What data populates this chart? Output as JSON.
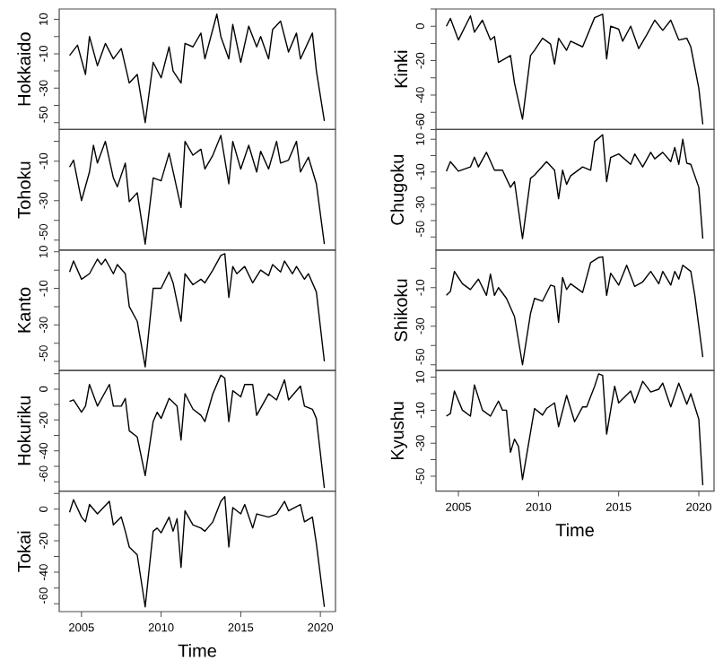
{
  "chart_data": [
    {
      "type": "line",
      "ylabel": "Hokkaido",
      "color": "#000000",
      "tick_labels": "y",
      "xlim": [
        2003.6,
        2020.95
      ],
      "ylim": [
        -54,
        16
      ],
      "yticks": [
        {
          "value": -50,
          "label": "-50"
        },
        {
          "value": -40,
          "label": null
        },
        {
          "value": -30,
          "label": "-30"
        },
        {
          "value": -20,
          "label": null
        },
        {
          "value": -10,
          "label": "-10"
        },
        {
          "value": 0,
          "label": null
        },
        {
          "value": 10,
          "label": "10"
        }
      ],
      "x": [
        2004.25,
        2004.75,
        2005.25,
        2005.5,
        2006,
        2006.5,
        2007,
        2007.5,
        2008,
        2008.5,
        2009,
        2009.5,
        2010,
        2010.5,
        2010.75,
        2011.25,
        2011.5,
        2012,
        2012.5,
        2012.75,
        2013.5,
        2013.75,
        2014.25,
        2014.5,
        2015,
        2015.5,
        2016,
        2016.25,
        2016.75,
        2017,
        2017.5,
        2018,
        2018.5,
        2018.75,
        2019.5,
        2019.75,
        2020.25
      ],
      "values": [
        -11,
        -5,
        -22,
        0,
        -17,
        -4,
        -13,
        -7,
        -27,
        -22,
        -50,
        -15,
        -24,
        -6,
        -20,
        -27,
        -4,
        -6,
        2,
        -13,
        13,
        0,
        -13,
        7,
        -15,
        6,
        -6,
        0,
        -13,
        4,
        9,
        -9,
        2,
        -13,
        2,
        -20,
        -49
      ]
    },
    {
      "type": "line",
      "ylabel": "Tohoku",
      "color": "#000000",
      "tick_labels": "y",
      "xlim": [
        2003.6,
        2020.95
      ],
      "ylim": [
        -55,
        6
      ],
      "yticks": [
        {
          "value": -50,
          "label": "-50"
        },
        {
          "value": -40,
          "label": null
        },
        {
          "value": -30,
          "label": "-30"
        },
        {
          "value": -20,
          "label": null
        },
        {
          "value": -10,
          "label": "-10"
        },
        {
          "value": 0,
          "label": null
        }
      ],
      "x": [
        2004.25,
        2004.5,
        2005,
        2005.5,
        2005.75,
        2006,
        2006.5,
        2007,
        2007.25,
        2007.75,
        2008,
        2008.5,
        2009,
        2009.5,
        2010,
        2010.5,
        2011.25,
        2011.5,
        2012,
        2012.5,
        2012.75,
        2013.25,
        2013.75,
        2014.25,
        2014.5,
        2015,
        2015.5,
        2016,
        2016.25,
        2016.75,
        2017.25,
        2017.5,
        2018,
        2018.5,
        2018.75,
        2019.25,
        2019.75,
        2020.25
      ],
      "values": [
        -13,
        -9.5,
        -30,
        -15.5,
        -2,
        -11,
        0,
        -18.5,
        -23,
        -11,
        -30.5,
        -26,
        -52,
        -18.5,
        -20,
        -6,
        -33.5,
        0,
        -7,
        -4,
        -14,
        -7,
        3,
        -21.5,
        0,
        -14,
        -2,
        -15.5,
        -5,
        -14,
        0,
        -11,
        -9.5,
        0,
        -15.5,
        -8,
        -21.5,
        -52
      ]
    },
    {
      "type": "line",
      "ylabel": "Kanto",
      "color": "#000000",
      "tick_labels": "y",
      "xlim": [
        2003.6,
        2020.95
      ],
      "ylim": [
        -55,
        11
      ],
      "yticks": [
        {
          "value": -50,
          "label": "-50"
        },
        {
          "value": -40,
          "label": null
        },
        {
          "value": -30,
          "label": "-30"
        },
        {
          "value": -20,
          "label": null
        },
        {
          "value": -10,
          "label": "-10"
        },
        {
          "value": 0,
          "label": null
        },
        {
          "value": 10,
          "label": "10"
        }
      ],
      "x": [
        2004.25,
        2004.5,
        2005,
        2005.5,
        2006,
        2006.25,
        2006.5,
        2007,
        2007.25,
        2007.75,
        2008,
        2008.5,
        2009,
        2009.5,
        2010,
        2010.5,
        2010.75,
        2011.25,
        2011.5,
        2012,
        2012.5,
        2012.75,
        2013.25,
        2013.75,
        2014,
        2014.25,
        2014.5,
        2014.75,
        2015.25,
        2015.75,
        2016.25,
        2016.75,
        2017,
        2017.5,
        2017.75,
        2018.25,
        2018.5,
        2019,
        2019.25,
        2019.75,
        2020.25
      ],
      "values": [
        -1,
        5,
        -5,
        -2,
        6,
        3,
        6,
        -2,
        3,
        -2,
        -20,
        -28,
        -53,
        -10,
        -10,
        -1,
        -7,
        -28,
        -2,
        -8,
        -5,
        -7,
        0,
        8,
        9,
        -15,
        2,
        -2,
        2,
        -7,
        0,
        -3,
        3,
        -1,
        5,
        -2,
        2,
        -5,
        -2,
        -12,
        -50
      ]
    },
    {
      "type": "line",
      "ylabel": "Hokuriku",
      "color": "#000000",
      "tick_labels": "y",
      "xlim": [
        2003.6,
        2020.95
      ],
      "ylim": [
        -66,
        12
      ],
      "yticks": [
        {
          "value": -60,
          "label": "-60"
        },
        {
          "value": -50,
          "label": null
        },
        {
          "value": -40,
          "label": "-40"
        },
        {
          "value": -30,
          "label": null
        },
        {
          "value": -20,
          "label": "-20"
        },
        {
          "value": -10,
          "label": null
        },
        {
          "value": 0,
          "label": "0"
        },
        {
          "value": 10,
          "label": null
        }
      ],
      "x": [
        2004.25,
        2004.5,
        2005,
        2005.25,
        2005.5,
        2006,
        2006.75,
        2007,
        2007.5,
        2007.75,
        2008,
        2008.5,
        2009,
        2009.5,
        2009.75,
        2010,
        2010.5,
        2011,
        2011.25,
        2011.5,
        2012,
        2012.5,
        2012.75,
        2013.25,
        2013.75,
        2014,
        2014.25,
        2014.5,
        2015,
        2015.25,
        2015.75,
        2016,
        2016.75,
        2017.25,
        2017.75,
        2018,
        2018.75,
        2019,
        2019.5,
        2019.75,
        2020.25
      ],
      "values": [
        -8,
        -7,
        -15,
        -11,
        3,
        -11,
        3,
        -11,
        -11,
        -6,
        -27,
        -31,
        -56,
        -21,
        -15,
        -19,
        -6,
        -11,
        -33,
        -3,
        -13,
        -17,
        -21,
        -3,
        9,
        7,
        -21,
        -1,
        -5,
        3,
        3,
        -17,
        -3,
        -7,
        6,
        -7,
        2,
        -11,
        -13,
        -19,
        -64
      ]
    },
    {
      "type": "line",
      "ylabel": "Tokai",
      "xlabel": "Time",
      "color": "#000000",
      "xlim": [
        2003.6,
        2020.95
      ],
      "xticks": [
        2005,
        2010,
        2015,
        2020
      ],
      "ylim": [
        -65,
        11.5
      ],
      "yticks": [
        {
          "value": -60,
          "label": "-60"
        },
        {
          "value": -50,
          "label": null
        },
        {
          "value": -40,
          "label": "-40"
        },
        {
          "value": -30,
          "label": null
        },
        {
          "value": -20,
          "label": "-20"
        },
        {
          "value": -10,
          "label": null
        },
        {
          "value": 0,
          "label": "0"
        },
        {
          "value": 10,
          "label": null
        }
      ],
      "x": [
        2004.25,
        2004.5,
        2005,
        2005.25,
        2005.5,
        2006,
        2006.75,
        2007,
        2007.5,
        2007.75,
        2008,
        2008.5,
        2009,
        2009.5,
        2009.75,
        2010,
        2010.5,
        2010.75,
        2011,
        2011.25,
        2011.5,
        2012,
        2012.5,
        2012.75,
        2013.25,
        2013.75,
        2014,
        2014.25,
        2014.5,
        2015,
        2015.25,
        2015.75,
        2016,
        2016.75,
        2017.25,
        2017.75,
        2018,
        2018.75,
        2019,
        2019.5,
        2019.75,
        2020.25
      ],
      "values": [
        -2,
        6,
        -5,
        -8,
        3,
        -3,
        5,
        -10,
        -5,
        -14,
        -24,
        -29,
        -62,
        -14,
        -12,
        -15,
        -5,
        -14,
        -6,
        -37,
        -1,
        -10,
        -12,
        -14,
        -8,
        5,
        8,
        -24,
        1,
        -3,
        3,
        -12,
        -3,
        -5,
        -3,
        5,
        -1,
        3,
        -8,
        -5,
        -22,
        -62
      ]
    },
    {
      "type": "line",
      "ylabel": "Kinki",
      "color": "#000000",
      "tick_labels": "y",
      "xlim": [
        2003.6,
        2020.95
      ],
      "ylim": [
        -60,
        10
      ],
      "yticks": [
        {
          "value": -60,
          "label": "-60"
        },
        {
          "value": -50,
          "label": null
        },
        {
          "value": -40,
          "label": "-40"
        },
        {
          "value": -30,
          "label": null
        },
        {
          "value": -20,
          "label": "-20"
        },
        {
          "value": -10,
          "label": null
        },
        {
          "value": 0,
          "label": "0"
        },
        {
          "value": 10,
          "label": null
        }
      ],
      "x": [
        2004.25,
        2004.5,
        2005,
        2005.75,
        2006,
        2006.5,
        2007,
        2007.25,
        2007.5,
        2008.25,
        2008.5,
        2009,
        2009.5,
        2009.75,
        2010.25,
        2010.75,
        2011,
        2011.25,
        2011.75,
        2012,
        2012.75,
        2013.5,
        2014,
        2014.25,
        2014.5,
        2015,
        2015.25,
        2015.75,
        2016.25,
        2016.75,
        2017.25,
        2017.75,
        2018.25,
        2018.75,
        2019.25,
        2019.5,
        2020,
        2020.25
      ],
      "values": [
        0,
        4.5,
        -8,
        6,
        -3.5,
        3.5,
        -8,
        -6,
        -21,
        -17,
        -33,
        -54,
        -17,
        -14,
        -7,
        -10.4,
        -22,
        -7,
        -14,
        -8.7,
        -12,
        5,
        7,
        -19,
        0,
        -1.7,
        -8.7,
        0,
        -13,
        -5,
        3.5,
        -2.4,
        3.5,
        -8,
        -7,
        -12,
        -36,
        -57
      ]
    },
    {
      "type": "line",
      "ylabel": "Chugoku",
      "color": "#000000",
      "tick_labels": "y",
      "xlim": [
        2003.6,
        2020.95
      ],
      "ylim": [
        -58,
        16
      ],
      "yticks": [
        {
          "value": -50,
          "label": "-50"
        },
        {
          "value": -40,
          "label": null
        },
        {
          "value": -30,
          "label": "-30"
        },
        {
          "value": -20,
          "label": null
        },
        {
          "value": -10,
          "label": "-10"
        },
        {
          "value": 0,
          "label": null
        },
        {
          "value": 10,
          "label": "10"
        }
      ],
      "x": [
        2004.25,
        2004.5,
        2005,
        2005.75,
        2006,
        2006.25,
        2006.75,
        2007.25,
        2007.75,
        2008.25,
        2008.5,
        2009,
        2009.5,
        2009.75,
        2010.5,
        2011,
        2011.25,
        2011.5,
        2011.75,
        2012,
        2012.75,
        2013.25,
        2013.5,
        2014,
        2014.25,
        2014.5,
        2015,
        2015.75,
        2016,
        2016.5,
        2017,
        2017.25,
        2017.75,
        2018.25,
        2018.5,
        2018.75,
        2019,
        2019.25,
        2019.5,
        2020,
        2020.25
      ],
      "values": [
        -9.6,
        -3.7,
        -9.6,
        -7,
        -1,
        -7,
        2,
        -9,
        -9,
        -19.5,
        -16,
        -51,
        -14,
        -12,
        -3.7,
        -9,
        -26.5,
        -9,
        -17.7,
        -12.5,
        -7,
        -9,
        8.6,
        12.8,
        -16,
        -1.2,
        1,
        -5.4,
        1,
        -7,
        2,
        -2,
        2,
        -3.7,
        5,
        -5.4,
        10,
        -4.7,
        -5.4,
        -19.5,
        -51
      ]
    },
    {
      "type": "line",
      "ylabel": "Shikoku",
      "color": "#000000",
      "tick_labels": "y",
      "xlim": [
        2003.6,
        2020.95
      ],
      "ylim": [
        -53,
        9.5
      ],
      "yticks": [
        {
          "value": -50,
          "label": "-50"
        },
        {
          "value": -40,
          "label": null
        },
        {
          "value": -30,
          "label": "-30"
        },
        {
          "value": -20,
          "label": null
        },
        {
          "value": -10,
          "label": "-10"
        },
        {
          "value": 0,
          "label": null
        }
      ],
      "x": [
        2004.25,
        2004.5,
        2004.75,
        2005.25,
        2005.75,
        2006.25,
        2006.75,
        2007,
        2007.25,
        2007.5,
        2008,
        2008.5,
        2009,
        2009.5,
        2009.75,
        2010.25,
        2010.75,
        2011,
        2011.25,
        2011.5,
        2011.75,
        2012,
        2012.5,
        2012.75,
        2013.25,
        2013.75,
        2014,
        2014.25,
        2014.5,
        2015,
        2015.5,
        2016,
        2016.5,
        2017,
        2017.5,
        2017.75,
        2018.25,
        2018.5,
        2018.75,
        2019,
        2019.5,
        2019.75,
        2020.25
      ],
      "values": [
        -14,
        -12,
        -1.6,
        -8,
        -11,
        -5.6,
        -14,
        -3,
        -14,
        -10,
        -15.6,
        -25,
        -50,
        -23.4,
        -15.6,
        -17,
        -8.7,
        -9.4,
        -28,
        -4.7,
        -11,
        -8,
        -11,
        -12.5,
        3,
        5.6,
        6,
        -14,
        -2.5,
        -8.7,
        1.6,
        -9.4,
        -7,
        -1.6,
        -8,
        -1.6,
        -8.7,
        -1.6,
        -5.6,
        1.6,
        -1.6,
        -14,
        -46
      ]
    },
    {
      "type": "line",
      "ylabel": "Kyushu",
      "xlabel": "Time",
      "color": "#000000",
      "xlim": [
        2003.6,
        2020.95
      ],
      "xticks": [
        2005,
        2010,
        2015,
        2020
      ],
      "ylim": [
        -59,
        14
      ],
      "yticks": [
        {
          "value": -50,
          "label": "-50"
        },
        {
          "value": -40,
          "label": null
        },
        {
          "value": -30,
          "label": "-30"
        },
        {
          "value": -20,
          "label": null
        },
        {
          "value": -10,
          "label": "-10"
        },
        {
          "value": 0,
          "label": null
        },
        {
          "value": 10,
          "label": "10"
        }
      ],
      "x": [
        2004.25,
        2004.5,
        2004.75,
        2005.25,
        2005.75,
        2006,
        2006.5,
        2007,
        2007.5,
        2007.75,
        2008,
        2008.25,
        2008.5,
        2008.75,
        2009,
        2009.75,
        2010.25,
        2010.5,
        2011,
        2011.25,
        2011.75,
        2012.25,
        2012.75,
        2013,
        2013.5,
        2013.75,
        2014,
        2014.25,
        2014.75,
        2015,
        2015.75,
        2016,
        2016.5,
        2017,
        2017.5,
        2017.75,
        2018.25,
        2018.75,
        2019.25,
        2019.5,
        2020,
        2020.25
      ],
      "values": [
        -13.6,
        -12,
        1.6,
        -10,
        -13.6,
        5.3,
        -10,
        -13.6,
        -4.5,
        -10,
        -10,
        -35.5,
        -27.5,
        -32,
        -52,
        -9,
        -13,
        -9,
        -5.6,
        -20,
        -1,
        -17,
        -8,
        -8,
        4.5,
        12,
        11,
        -24.5,
        4.5,
        -5.6,
        1.6,
        -5.6,
        7.5,
        1,
        2.7,
        6.4,
        -8,
        6.4,
        -6.4,
        0,
        -15.5,
        -55.5
      ]
    }
  ]
}
